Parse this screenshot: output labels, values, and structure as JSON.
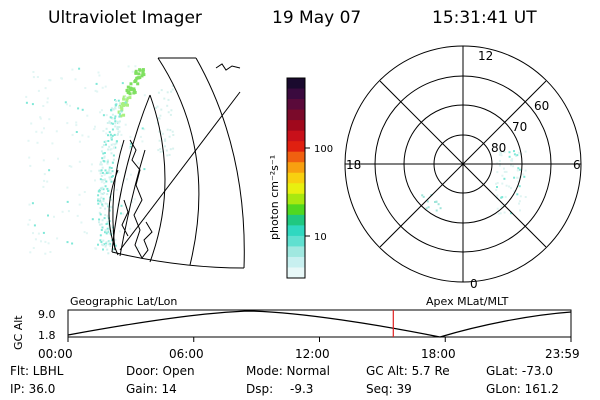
{
  "header": {
    "instrument": "Ultraviolet Imager",
    "date": "19 May 07",
    "time": "15:31:41 UT"
  },
  "left_panel": {
    "label": "Geographic Lat/Lon"
  },
  "right_panel": {
    "label": "Apex MLat/MLT",
    "mlt_labels": {
      "top": "12",
      "bottom": "0",
      "left": "18",
      "right": "6"
    },
    "mlat_labels": [
      "60",
      "70",
      "80"
    ]
  },
  "colorbar": {
    "unit_label": "photon cm⁻²s⁻¹",
    "ticks": [
      "100",
      "10"
    ],
    "colors": [
      "#1a0a2e",
      "#3a0a3e",
      "#5a0a3a",
      "#7a0a2a",
      "#a0081c",
      "#c8101a",
      "#e02010",
      "#f06010",
      "#f8a010",
      "#f8d010",
      "#e8f010",
      "#a8e810",
      "#50d820",
      "#20c880",
      "#30d8c0",
      "#60e0d0",
      "#a0e8e0",
      "#c8f0f0",
      "#e8f8f8"
    ]
  },
  "timeline": {
    "axis_label": "GC Alt",
    "y_max": "9.0",
    "y_min": "1.8",
    "ticks": [
      "00:00",
      "06:00",
      "12:00",
      "18:00",
      "23:59"
    ],
    "current_fraction": 0.6467
  },
  "footer": {
    "col1": [
      "Flt: LBHL",
      "IP: 36.0"
    ],
    "col2": [
      "Door: Open",
      "Gain: 14"
    ],
    "col3a": [
      "Mode: Normal",
      "Dsp:"
    ],
    "col3b": [
      "",
      "-9.3"
    ],
    "col4": [
      "GC Alt: 5.7 Re",
      "Seq: 39"
    ],
    "col5": [
      "GLat: -73.0",
      "GLon: 161.2"
    ]
  },
  "colors": {
    "aurora_green": "#7fe060",
    "aurora_cyan": "#80e8d8",
    "marker_red": "#e02020"
  }
}
